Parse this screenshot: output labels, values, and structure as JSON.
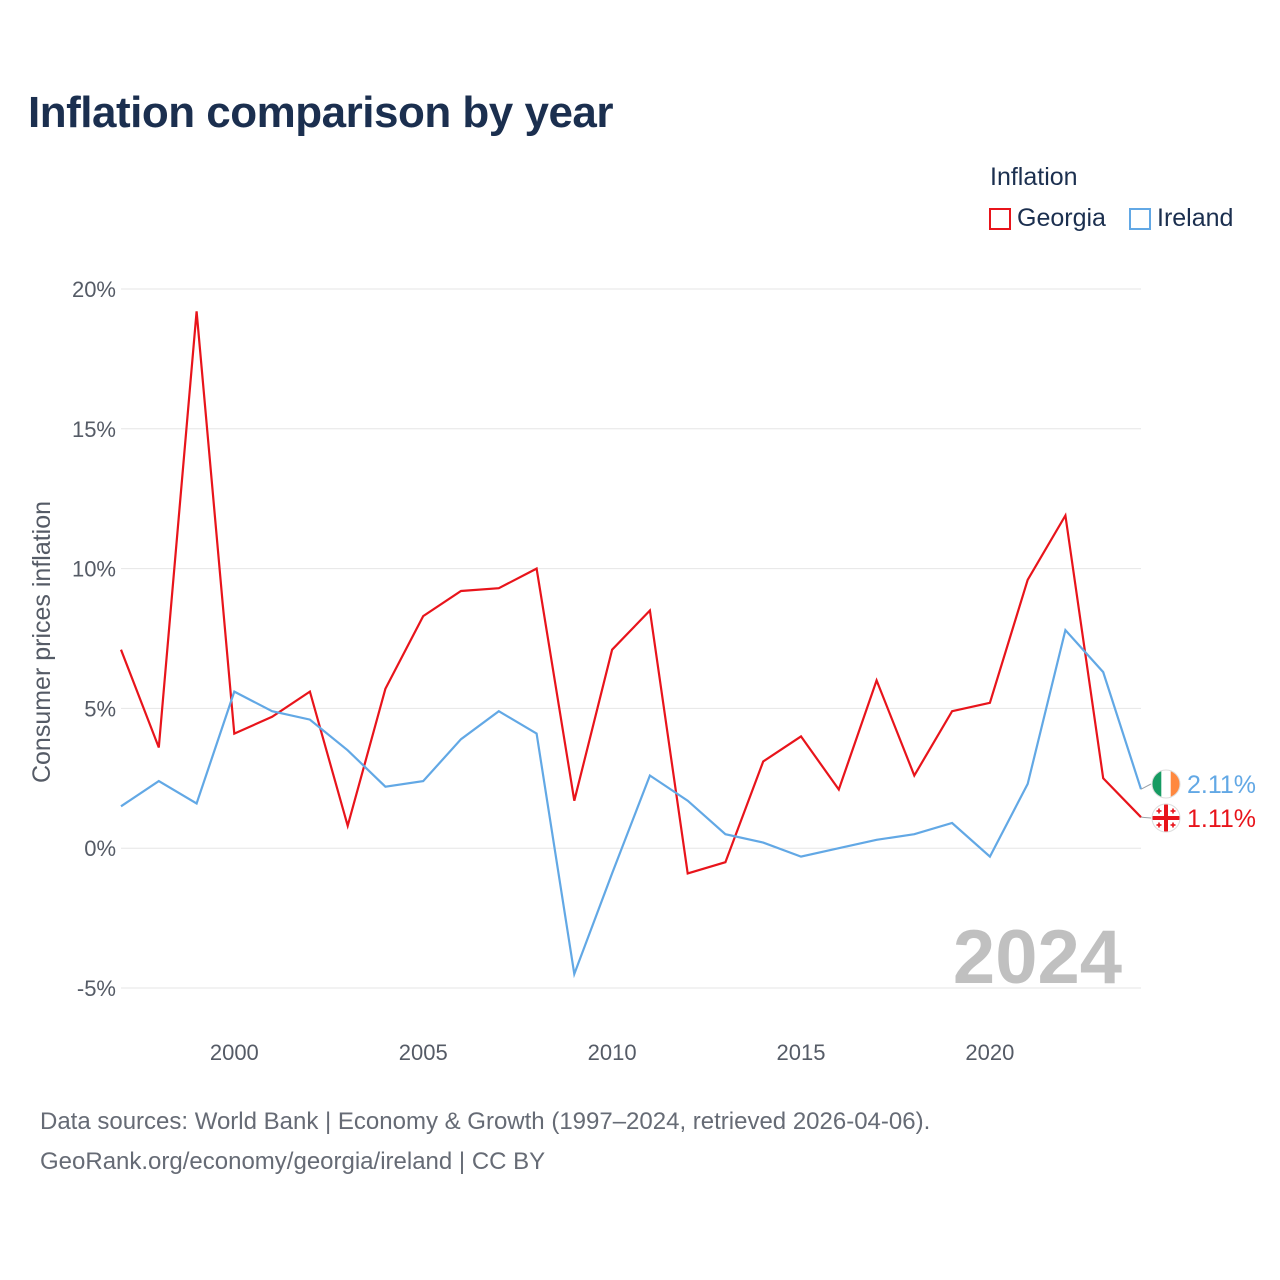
{
  "title": "Inflation comparison by year",
  "legend": {
    "title": "Inflation",
    "items": [
      {
        "label": "Georgia",
        "color": "#e8141b"
      },
      {
        "label": "Ireland",
        "color": "#62a8e5"
      }
    ]
  },
  "footer": {
    "line1": "Data sources: World Bank | Economy & Growth (1997–2024, retrieved 2026-04-06).",
    "line2": "GeoRank.org/economy/georgia/ireland | CC BY"
  },
  "chart_data": {
    "type": "line",
    "title": "Inflation comparison by year",
    "xlabel": "",
    "ylabel": "Consumer prices inflation",
    "watermark_year": "2024",
    "xlim": [
      1997,
      2024
    ],
    "ylim": [
      -5,
      20
    ],
    "y_ticks": [
      20,
      15,
      10,
      5,
      0,
      -5
    ],
    "y_tick_labels": [
      "20%",
      "15%",
      "10%",
      "5%",
      "0%",
      "-5%"
    ],
    "x_ticks": [
      2000,
      2005,
      2010,
      2015,
      2020
    ],
    "x_tick_labels": [
      "2000",
      "2005",
      "2010",
      "2015",
      "2020"
    ],
    "grid": true,
    "x": [
      1997,
      1998,
      1999,
      2000,
      2001,
      2002,
      2003,
      2004,
      2005,
      2006,
      2007,
      2008,
      2009,
      2010,
      2011,
      2012,
      2013,
      2014,
      2015,
      2016,
      2017,
      2018,
      2019,
      2020,
      2021,
      2022,
      2023,
      2024
    ],
    "series": [
      {
        "name": "Georgia",
        "color": "#e8141b",
        "end_label": "1.11%",
        "flag_icon": "georgia-flag-icon",
        "values": [
          7.1,
          3.6,
          19.2,
          4.1,
          4.7,
          5.6,
          0.8,
          5.7,
          8.3,
          9.2,
          9.3,
          10.0,
          1.7,
          7.1,
          8.5,
          -0.9,
          -0.5,
          3.1,
          4.0,
          2.1,
          6.0,
          2.6,
          4.9,
          5.2,
          9.6,
          11.9,
          2.5,
          1.11
        ]
      },
      {
        "name": "Ireland",
        "color": "#62a8e5",
        "end_label": "2.11%",
        "flag_icon": "ireland-flag-icon",
        "values": [
          1.5,
          2.4,
          1.6,
          5.6,
          4.9,
          4.6,
          3.5,
          2.2,
          2.4,
          3.9,
          4.9,
          4.1,
          -4.5,
          -0.9,
          2.6,
          1.7,
          0.5,
          0.2,
          -0.3,
          0.0,
          0.3,
          0.5,
          0.9,
          -0.3,
          2.3,
          7.8,
          6.3,
          2.11
        ]
      }
    ]
  }
}
